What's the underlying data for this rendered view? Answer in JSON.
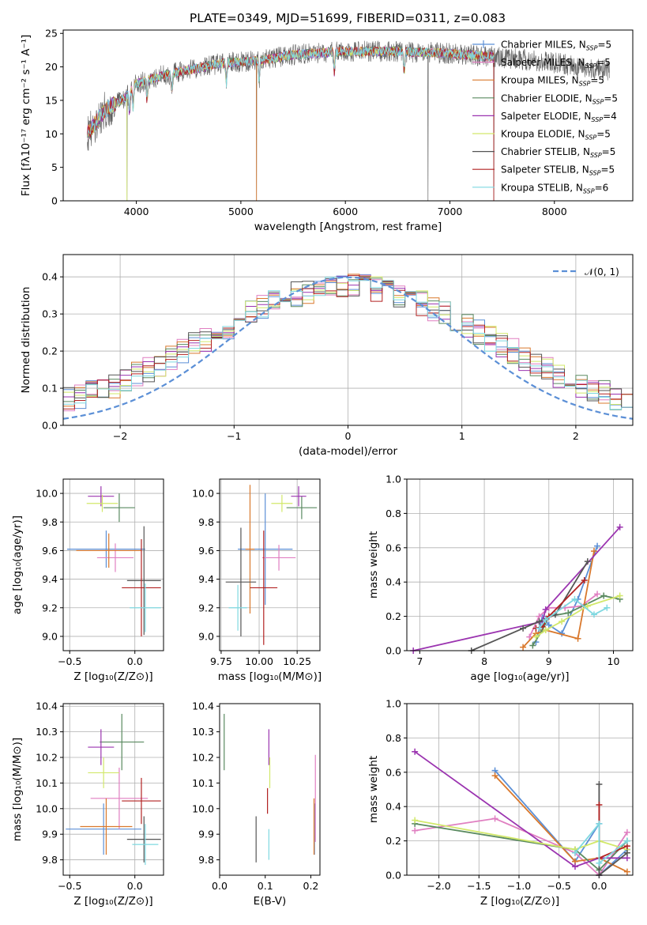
{
  "colors": {
    "Chabrier MILES": "#5b8fd6",
    "Salpeter MILES": "#e07fc1",
    "Kroupa MILES": "#d9782c",
    "Chabrier ELODIE": "#5a8a60",
    "Salpeter ELODIE": "#9b34b0",
    "Kroupa ELODIE": "#d2e86a",
    "Chabrier STELIB": "#555555",
    "Salpeter STELIB": "#b22222",
    "Kroupa STELIB": "#7fd8e0",
    "normal_curve": "#5b8fd6"
  },
  "chart_data": [
    {
      "panel": "spectrum",
      "type": "line",
      "title": "PLATE=0349, MJD=51699, FIBERID=0311, z=0.083",
      "xlabel": "wavelength [Angstrom, rest frame]",
      "ylabel": "Flux [fλ10⁻¹⁷ erg cm⁻² s⁻¹ A⁻¹]",
      "xlim": [
        3300,
        8750
      ],
      "ylim": [
        0,
        25.5
      ],
      "xticks": [
        "4000",
        "5000",
        "6000",
        "7000",
        "8000"
      ],
      "yticks": [
        "0",
        "5",
        "10",
        "15",
        "20",
        "25"
      ],
      "legend_position": "right",
      "legend": [
        {
          "name": "Chabrier MILES",
          "nssp": "5"
        },
        {
          "name": "Salpeter MILES",
          "nssp": "5"
        },
        {
          "name": "Kroupa MILES",
          "nssp": "5"
        },
        {
          "name": "Chabrier ELODIE",
          "nssp": "5"
        },
        {
          "name": "Salpeter ELODIE",
          "nssp": "4"
        },
        {
          "name": "Kroupa ELODIE",
          "nssp": "5"
        },
        {
          "name": "Chabrier STELIB",
          "nssp": "5"
        },
        {
          "name": "Salpeter STELIB",
          "nssp": "5"
        },
        {
          "name": "Kroupa STELIB",
          "nssp": "6"
        }
      ],
      "nssp_prefix": "N",
      "nssp_sub": "SSP",
      "continuum": [
        [
          3530,
          10
        ],
        [
          3700,
          13.5
        ],
        [
          3900,
          15.5
        ],
        [
          4000,
          17.5
        ],
        [
          4200,
          18.5
        ],
        [
          4500,
          19.5
        ],
        [
          4800,
          20.5
        ],
        [
          5200,
          21
        ],
        [
          5500,
          21.8
        ],
        [
          6000,
          22.3
        ],
        [
          6500,
          22.3
        ],
        [
          7000,
          22
        ],
        [
          7500,
          21.4
        ],
        [
          8000,
          20.6
        ],
        [
          8500,
          19.5
        ]
      ],
      "data_xrange": [
        3530,
        8530
      ],
      "model_xrange": [
        3530,
        7420
      ]
    },
    {
      "panel": "residuals",
      "type": "histogram",
      "xlabel": "(data-model)/error",
      "ylabel": "Normed distribution",
      "xlim": [
        -2.5,
        2.5
      ],
      "ylim": [
        0,
        0.46
      ],
      "xticks": [
        "−2",
        "−1",
        "0",
        "1",
        "2"
      ],
      "yticks": [
        "0.0",
        "0.1",
        "0.2",
        "0.3",
        "0.4"
      ],
      "legend": [
        "𝒩(0, 1)"
      ],
      "grid": true,
      "bin_width": 0.1
    },
    {
      "panel": "age-vs-Z",
      "type": "scatter",
      "xlabel": "Z [log₁₀(Z/Z⊙)]",
      "ylabel": "age  [log₁₀(age/yr)]",
      "xlim": [
        -0.55,
        0.22
      ],
      "ylim": [
        8.9,
        10.1
      ],
      "xticks": [
        "−0.5",
        "0.0"
      ],
      "yticks": [
        "9.0",
        "9.2",
        "9.4",
        "9.6",
        "9.8",
        "10.0"
      ],
      "grid": true,
      "points": [
        {
          "model": "Chabrier MILES",
          "x": -0.22,
          "xerr": 0.3,
          "y": 9.61,
          "yerr": 0.13
        },
        {
          "model": "Salpeter MILES",
          "x": -0.15,
          "xerr": 0.14,
          "y": 9.55,
          "yerr": 0.1
        },
        {
          "model": "Kroupa MILES",
          "x": -0.2,
          "xerr": 0.25,
          "y": 9.6,
          "yerr": 0.12
        },
        {
          "model": "Chabrier ELODIE",
          "x": -0.12,
          "xerr": 0.12,
          "y": 9.9,
          "yerr": 0.1
        },
        {
          "model": "Salpeter ELODIE",
          "x": -0.26,
          "xerr": 0.1,
          "y": 9.98,
          "yerr": 0.07
        },
        {
          "model": "Kroupa ELODIE",
          "x": -0.25,
          "xerr": 0.12,
          "y": 9.93,
          "yerr": 0.06
        },
        {
          "model": "Chabrier STELIB",
          "x": 0.07,
          "xerr": 0.13,
          "y": 9.39,
          "yerr": 0.38
        },
        {
          "model": "Salpeter STELIB",
          "x": 0.05,
          "xerr": 0.15,
          "y": 9.34,
          "yerr": 0.34
        },
        {
          "model": "Kroupa STELIB",
          "x": 0.08,
          "xerr": 0.12,
          "y": 9.2,
          "yerr": 0.17
        }
      ]
    },
    {
      "panel": "age-vs-mass",
      "type": "scatter",
      "xlabel": "mass [log₁₀(M/M⊙)]",
      "ylabel": "",
      "xlim": [
        9.74,
        10.4
      ],
      "ylim": [
        8.9,
        10.1
      ],
      "xticks": [
        "9.75",
        "10.00",
        "10.25"
      ],
      "yticks": [
        "9.0",
        "9.2",
        "9.4",
        "9.6",
        "9.8",
        "10.0"
      ],
      "grid": true,
      "points": [
        {
          "model": "Chabrier MILES",
          "x": 10.04,
          "xerr": 0.18,
          "y": 9.61,
          "yerr": 0.39
        },
        {
          "model": "Salpeter MILES",
          "x": 10.13,
          "xerr": 0.11,
          "y": 9.55,
          "yerr": 0.09
        },
        {
          "model": "Kroupa MILES",
          "x": 9.94,
          "xerr": 0.03,
          "y": 9.61,
          "yerr": 0.45
        },
        {
          "model": "Chabrier ELODIE",
          "x": 10.28,
          "xerr": 0.1,
          "y": 9.9,
          "yerr": 0.08
        },
        {
          "model": "Salpeter ELODIE",
          "x": 10.26,
          "xerr": 0.05,
          "y": 9.98,
          "yerr": 0.07
        },
        {
          "model": "Kroupa ELODIE",
          "x": 10.15,
          "xerr": 0.07,
          "y": 9.93,
          "yerr": 0.06
        },
        {
          "model": "Chabrier STELIB",
          "x": 9.88,
          "xerr": 0.1,
          "y": 9.38,
          "yerr": 0.38
        },
        {
          "model": "Salpeter STELIB",
          "x": 10.03,
          "xerr": 0.09,
          "y": 9.34,
          "yerr": 0.4
        },
        {
          "model": "Kroupa STELIB",
          "x": 9.86,
          "xerr": 0.06,
          "y": 9.2,
          "yerr": 0.16
        }
      ]
    },
    {
      "panel": "mass-weight-vs-age",
      "type": "line",
      "xlabel": "age  [log₁₀(age/yr)]",
      "ylabel": "mass weight",
      "xlim": [
        6.8,
        10.3
      ],
      "ylim": [
        0,
        1.0
      ],
      "xticks": [
        "7",
        "8",
        "9",
        "10"
      ],
      "yticks": [
        "0.0",
        "0.2",
        "0.4",
        "0.6",
        "0.8",
        "1.0"
      ],
      "grid": true,
      "series": [
        {
          "model": "Chabrier MILES",
          "x": [
            8.8,
            8.9,
            9.0,
            9.2,
            9.45,
            9.75
          ],
          "y": [
            0.05,
            0.2,
            0.15,
            0.1,
            0.3,
            0.61
          ]
        },
        {
          "model": "Salpeter MILES",
          "x": [
            8.7,
            8.85,
            9.0,
            9.25,
            9.5,
            9.75
          ],
          "y": [
            0.08,
            0.2,
            0.25,
            0.25,
            0.26,
            0.33
          ]
        },
        {
          "model": "Kroupa MILES",
          "x": [
            8.6,
            8.8,
            8.95,
            9.45,
            9.7
          ],
          "y": [
            0.02,
            0.1,
            0.12,
            0.07,
            0.58
          ]
        },
        {
          "model": "Chabrier ELODIE",
          "x": [
            8.75,
            8.9,
            9.0,
            9.3,
            9.85,
            10.1
          ],
          "y": [
            0.03,
            0.12,
            0.2,
            0.22,
            0.32,
            0.3
          ]
        },
        {
          "model": "Salpeter ELODIE",
          "x": [
            6.9,
            8.9,
            8.95,
            10.1
          ],
          "y": [
            0.0,
            0.17,
            0.24,
            0.72
          ]
        },
        {
          "model": "Kroupa ELODIE",
          "x": [
            8.8,
            8.95,
            9.2,
            9.6,
            10.1
          ],
          "y": [
            0.08,
            0.12,
            0.17,
            0.26,
            0.32
          ]
        },
        {
          "model": "Chabrier STELIB",
          "x": [
            7.8,
            8.6,
            8.85,
            9.1,
            9.6
          ],
          "y": [
            0.0,
            0.13,
            0.17,
            0.21,
            0.52
          ]
        },
        {
          "model": "Salpeter STELIB",
          "x": [
            8.8,
            8.9,
            9.0,
            9.55
          ],
          "y": [
            0.13,
            0.14,
            0.2,
            0.41
          ]
        },
        {
          "model": "Kroupa STELIB",
          "x": [
            8.85,
            8.95,
            9.4,
            9.7,
            9.9
          ],
          "y": [
            0.13,
            0.18,
            0.3,
            0.21,
            0.25
          ]
        }
      ]
    },
    {
      "panel": "mass-vs-Z",
      "type": "scatter",
      "xlabel": "Z [log₁₀(Z/Z⊙)]",
      "ylabel": "mass [log₁₀(M/M⊙)]",
      "xlim": [
        -0.55,
        0.22
      ],
      "ylim": [
        9.74,
        10.41
      ],
      "xticks": [
        "−0.5",
        "0.0"
      ],
      "yticks": [
        "9.8",
        "9.9",
        "10.0",
        "10.1",
        "10.2",
        "10.3",
        "10.4"
      ],
      "grid": true,
      "points": [
        {
          "model": "Chabrier MILES",
          "x": -0.24,
          "xerr": 0.29,
          "y": 9.92,
          "yerr": 0.1
        },
        {
          "model": "Salpeter MILES",
          "x": -0.12,
          "xerr": 0.22,
          "y": 10.04,
          "yerr": 0.12
        },
        {
          "model": "Kroupa MILES",
          "x": -0.22,
          "xerr": 0.2,
          "y": 9.93,
          "yerr": 0.11
        },
        {
          "model": "Chabrier ELODIE",
          "x": -0.1,
          "xerr": 0.17,
          "y": 10.26,
          "yerr": 0.11
        },
        {
          "model": "Salpeter ELODIE",
          "x": -0.26,
          "xerr": 0.1,
          "y": 10.24,
          "yerr": 0.07
        },
        {
          "model": "Kroupa ELODIE",
          "x": -0.24,
          "xerr": 0.12,
          "y": 10.14,
          "yerr": 0.06
        },
        {
          "model": "Chabrier STELIB",
          "x": 0.07,
          "xerr": 0.13,
          "y": 9.88,
          "yerr": 0.09
        },
        {
          "model": "Salpeter STELIB",
          "x": 0.05,
          "xerr": 0.15,
          "y": 10.03,
          "yerr": 0.09
        },
        {
          "model": "Kroupa STELIB",
          "x": 0.08,
          "xerr": 0.1,
          "y": 9.86,
          "yerr": 0.08
        }
      ]
    },
    {
      "panel": "mass-vs-EBV",
      "type": "scatter",
      "xlabel": "E(B-V)",
      "ylabel": "",
      "xlim": [
        0,
        0.22
      ],
      "ylim": [
        9.74,
        10.41
      ],
      "xticks": [
        "0.0",
        "0.1",
        "0.2"
      ],
      "yticks": [
        "9.8",
        "9.9",
        "10.0",
        "10.1",
        "10.2",
        "10.3",
        "10.4"
      ],
      "grid": false,
      "points": [
        {
          "model": "Chabrier MILES",
          "x": 0.208,
          "y": 9.92,
          "yerr": 0.1
        },
        {
          "model": "Salpeter MILES",
          "x": 0.21,
          "y": 10.04,
          "yerr": 0.17
        },
        {
          "model": "Kroupa MILES",
          "x": 0.207,
          "y": 9.93,
          "yerr": 0.11
        },
        {
          "model": "Chabrier ELODIE",
          "x": 0.01,
          "y": 10.26,
          "yerr": 0.11
        },
        {
          "model": "Salpeter ELODIE",
          "x": 0.108,
          "y": 10.24,
          "yerr": 0.07
        },
        {
          "model": "Kroupa ELODIE",
          "x": 0.11,
          "y": 10.14,
          "yerr": 0.06
        },
        {
          "model": "Chabrier STELIB",
          "x": 0.08,
          "y": 9.88,
          "yerr": 0.09
        },
        {
          "model": "Salpeter STELIB",
          "x": 0.105,
          "y": 10.03,
          "yerr": 0.05
        },
        {
          "model": "Kroupa STELIB",
          "x": 0.108,
          "y": 9.86,
          "yerr": 0.06
        }
      ]
    },
    {
      "panel": "mass-weight-vs-Z",
      "type": "line",
      "xlabel": "Z [log₁₀(Z/Z⊙)]",
      "ylabel": "mass weight",
      "xlim": [
        -2.4,
        0.42
      ],
      "ylim": [
        0,
        1.0
      ],
      "xticks": [
        "−2.0",
        "−1.5",
        "−1.0",
        "−0.5",
        "0.0"
      ],
      "yticks": [
        "0.0",
        "0.2",
        "0.4",
        "0.6",
        "0.8",
        "1.0"
      ],
      "grid": true,
      "series": [
        {
          "model": "Chabrier MILES",
          "x": [
            -1.3,
            -0.3,
            0.0,
            0.0,
            0.35
          ],
          "y": [
            0.61,
            0.08,
            0.3,
            0.0,
            0.15
          ]
        },
        {
          "model": "Salpeter MILES",
          "x": [
            -2.3,
            -1.3,
            -0.3,
            0.0,
            0.35
          ],
          "y": [
            0.26,
            0.33,
            0.13,
            0.0,
            0.25
          ]
        },
        {
          "model": "Kroupa MILES",
          "x": [
            -1.3,
            -0.3,
            0.0,
            0.35
          ],
          "y": [
            0.58,
            0.08,
            0.1,
            0.02
          ]
        },
        {
          "model": "Chabrier ELODIE",
          "x": [
            -2.3,
            -0.3,
            0.0,
            0.35
          ],
          "y": [
            0.3,
            0.15,
            0.03,
            0.2
          ]
        },
        {
          "model": "Salpeter ELODIE",
          "x": [
            -2.3,
            -0.3,
            0.0,
            0.35
          ],
          "y": [
            0.72,
            0.05,
            0.1,
            0.1
          ]
        },
        {
          "model": "Kroupa ELODIE",
          "x": [
            -2.3,
            -0.3,
            0.0,
            0.35
          ],
          "y": [
            0.32,
            0.15,
            0.2,
            0.15
          ]
        },
        {
          "model": "Chabrier STELIB",
          "x": [
            0.0,
            0.0,
            0.35
          ],
          "y": [
            0.53,
            0.0,
            0.13
          ]
        },
        {
          "model": "Salpeter STELIB",
          "x": [
            0.0,
            0.0,
            0.35
          ],
          "y": [
            0.41,
            0.1,
            0.17
          ]
        },
        {
          "model": "Kroupa STELIB",
          "x": [
            -0.3,
            0.0,
            0.0,
            0.35
          ],
          "y": [
            0.13,
            0.3,
            0.07,
            0.2
          ]
        }
      ]
    }
  ]
}
